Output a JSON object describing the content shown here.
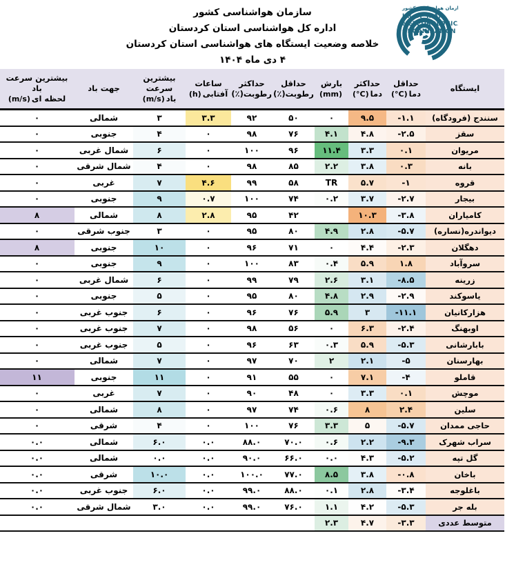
{
  "header": {
    "org_line1": "سازمان هواشناسی کشور",
    "org_line2": "اداره کل هواشناسی استان کردستان",
    "title": "خلاصه وضعیت ایستگاه های هواشناسی استان کردستان",
    "date": "۴ دی ماه ۱۴۰۴",
    "logo": {
      "color": "#1e667f",
      "text_fa": "سازمان هواشناسی کشور",
      "text_en": [
        "I.R.OF IRAN",
        "METEOROLOGICAL",
        "ORGANIZATION"
      ]
    }
  },
  "table": {
    "header_bg": "#e3e0ed",
    "station_bg": "#fbe5d6",
    "summary_station_bg": "#dad4e7",
    "columns": [
      {
        "id": "station",
        "line1": "ایستگاه"
      },
      {
        "id": "tmin",
        "line1": "حداقل",
        "line2": "دما",
        "unit": "(°C)"
      },
      {
        "id": "tmax",
        "line1": "حداکثر",
        "line2": "دما",
        "unit": "(°C)"
      },
      {
        "id": "precip",
        "line1": "بارش",
        "unit": "(mm)"
      },
      {
        "id": "rhmin",
        "line1": "حداقل",
        "line2": "رطوبت(٪)"
      },
      {
        "id": "rhmax",
        "line1": "حداکثر",
        "line2": "رطوبت(٪)"
      },
      {
        "id": "sun",
        "line1": "ساعات",
        "line2": "آفتابی",
        "unit": "(h)"
      },
      {
        "id": "wind",
        "line1": "بیشترین سرعت",
        "line2": "باد",
        "unit": "(m/s)"
      },
      {
        "id": "dir",
        "line1": "جهت باد"
      },
      {
        "id": "gust",
        "line1": "بیشترین سرعت باد",
        "line2": "لحظه ای",
        "unit": "(m/s)"
      }
    ],
    "rows": [
      {
        "station": "سنندج (فرودگاه)",
        "values": [
          "-۱.۱",
          "۹.۵",
          "۰",
          "۵۰",
          "۹۲",
          "۳.۳",
          "۳",
          "شمالی",
          "۰"
        ],
        "bgs": [
          "#fbe3d1",
          "#f5b885",
          null,
          null,
          null,
          "#fbe89c",
          null,
          null,
          null
        ]
      },
      {
        "station": "سقز",
        "values": [
          "-۲.۵",
          "۴.۸",
          "۴.۱",
          "۷۶",
          "۹۸",
          "۰",
          "۴",
          "جنوبی",
          "۰"
        ],
        "bgs": [
          "#fdf1e8",
          "#fdf4ee",
          "#c2e2cc",
          null,
          null,
          null,
          "#f8fbfc",
          null,
          null
        ]
      },
      {
        "station": "مریوان",
        "values": [
          "۰.۱",
          "۳.۳",
          "۱۱.۴",
          "۹۶",
          "۱۰۰",
          "۰",
          "۶",
          "شمال غربی",
          "۰"
        ],
        "bgs": [
          "#f9ddc4",
          "#ddecf4",
          "#66bd7d",
          null,
          null,
          null,
          "#e1f0f4",
          null,
          null
        ]
      },
      {
        "station": "بانه",
        "values": [
          "۰.۳",
          "۳.۸",
          "۲.۲",
          "۸۵",
          "۹۸",
          "۰",
          "۴",
          "شمال شرقی",
          "۰"
        ],
        "bgs": [
          "#f9dcc2",
          "#e4f0f6",
          "#ddefe3",
          null,
          null,
          null,
          "#f8fbfc",
          null,
          null
        ]
      },
      {
        "station": "قروه",
        "values": [
          "-۱",
          "۵.۷",
          "TR",
          "۵۸",
          "۹۹",
          "۴.۶",
          "۷",
          "غربی",
          "۰"
        ],
        "bgs": [
          "#fbe4d2",
          "#fae1cb",
          null,
          null,
          null,
          "#fadf7f",
          "#d8ecf1",
          null,
          null
        ]
      },
      {
        "station": "بیجار",
        "values": [
          "-۲.۷",
          "۳.۷",
          "۰.۲",
          "۷۴",
          "۱۰۰",
          "۰.۷",
          "۹",
          "جنوبی",
          "۰"
        ],
        "bgs": [
          "#fdf3ec",
          "#e2eff5",
          "#fbfdfb",
          null,
          null,
          "#fdf9e4",
          "#c5e4eb",
          null,
          null
        ]
      },
      {
        "station": "کامیاران",
        "values": [
          "-۳.۸",
          "۱۰.۳",
          "",
          "۴۲",
          "۹۵",
          "۲.۸",
          "۸",
          "شمالی",
          "۸"
        ],
        "bgs": [
          "#eef4f8",
          "#f4b27b",
          null,
          null,
          null,
          "#fcedae",
          "#cfe8ee",
          null,
          "#d5cde4"
        ]
      },
      {
        "station": "دیواندره(نساره)",
        "values": [
          "-۵.۷",
          "۲.۸",
          "۴.۹",
          "۸۰",
          "۹۵",
          "۰",
          "۳",
          "جنوب شرقی",
          "۰"
        ],
        "bgs": [
          "#d8e9f2",
          "#d3e6f0",
          "#b7ddc3",
          null,
          null,
          null,
          null,
          null,
          null
        ]
      },
      {
        "station": "دهگلان",
        "values": [
          "-۲.۳",
          "۴.۴",
          "۰",
          "۷۱",
          "۹۶",
          "۰",
          "۱۰",
          "جنوبی",
          "۸"
        ],
        "bgs": [
          "#fdf0e5",
          "#fefbf9",
          null,
          null,
          null,
          null,
          "#bce0e8",
          null,
          "#d5cde4"
        ]
      },
      {
        "station": "سروآباد",
        "values": [
          "۱.۸",
          "۵.۹",
          "۰.۴",
          "۸۳",
          "۱۰۰",
          "۰",
          "۹",
          "جنوبی",
          "۰"
        ],
        "bgs": [
          "#f8d5b5",
          "#f9ddc5",
          "#f7fbf8",
          null,
          null,
          null,
          "#c5e4eb",
          null,
          null
        ]
      },
      {
        "station": "زرینه",
        "values": [
          "-۸.۵",
          "۳.۱",
          "۲.۶",
          "۷۹",
          "۹۹",
          "۰",
          "۶",
          "شمال غربی",
          "۰"
        ],
        "bgs": [
          "#b3d4e4",
          "#dae9f2",
          "#d7ecde",
          null,
          null,
          null,
          "#e1f0f4",
          null,
          null
        ]
      },
      {
        "station": "یاسوکند",
        "values": [
          "-۲.۹",
          "۲.۹",
          "۴.۸",
          "۸۰",
          "۹۵",
          "۰",
          "۵",
          "جنوبی",
          "۰"
        ],
        "bgs": [
          "#fefaf7",
          "#d5e7f1",
          "#b8ddc4",
          null,
          null,
          null,
          "#eaf4f7",
          null,
          null
        ]
      },
      {
        "station": "هزارکانیان",
        "values": [
          "-۱۱.۱",
          "۳",
          "۵.۹",
          "۷۶",
          "۹۶",
          "۰",
          "۶",
          "جنوب غربی",
          "۰"
        ],
        "bgs": [
          "#9fc6db",
          "#d7e8f1",
          "#aad6b8",
          null,
          null,
          null,
          "#e1f0f4",
          null,
          null
        ]
      },
      {
        "station": "اوبهنگ",
        "values": [
          "-۲.۴",
          "۶.۳",
          "۰",
          "۵۶",
          "۹۸",
          "۰",
          "۷",
          "جنوب غربی",
          "۰"
        ],
        "bgs": [
          "#fdf2ea",
          "#f8d6b8",
          null,
          null,
          null,
          null,
          "#d8ecf1",
          null,
          null
        ]
      },
      {
        "station": "بابارشانی",
        "values": [
          "-۵.۳",
          "۵.۹",
          "۰.۳",
          "۶۳",
          "۹۶",
          "۰",
          "۵",
          "جنوب غربی",
          "۰"
        ],
        "bgs": [
          "#dcebf3",
          "#f9ddc5",
          "#f9fcfa",
          null,
          null,
          null,
          "#eaf4f7",
          null,
          null
        ]
      },
      {
        "station": "بهارسنان",
        "values": [
          "-۵",
          "۲.۱",
          "۲",
          "۷۰",
          "۹۷",
          "۰",
          "۷",
          "شمالی",
          "۰"
        ],
        "bgs": [
          "#e0edf4",
          "#cce2ee",
          "#e0f0e5",
          null,
          null,
          null,
          "#d8ecf1",
          null,
          null
        ]
      },
      {
        "station": "قاملو",
        "values": [
          "-۴",
          "۷.۱",
          "۰",
          "۵۵",
          "۹۱",
          "۰",
          "۱۱",
          "جنوبی",
          "۱۱"
        ],
        "bgs": [
          "#eff5f9",
          "#f7cda6",
          null,
          null,
          null,
          null,
          "#b2dce5",
          null,
          "#c3b7d8"
        ]
      },
      {
        "station": "موچش",
        "values": [
          "۰.۱",
          "۳.۳",
          "۰",
          "۴۸",
          "۹۰",
          "۰",
          "۷",
          "غربی",
          "۰"
        ],
        "bgs": [
          "#f9ddc4",
          "#ddecf4",
          null,
          null,
          null,
          null,
          "#d8ecf1",
          null,
          null
        ]
      },
      {
        "station": "سلین",
        "values": [
          "۲.۴",
          "۸",
          "۰.۶",
          "۷۴",
          "۹۷",
          "۰",
          "۸",
          "شمالی",
          "۰"
        ],
        "bgs": [
          "#f7d0ab",
          "#f6c494",
          "#f4faf6",
          null,
          null,
          null,
          "#cfe8ee",
          null,
          null
        ]
      },
      {
        "station": "حاجی ممدان",
        "values": [
          "-۵.۷",
          "۵",
          "۳.۳",
          "۷۶",
          "۱۰۰",
          "۰",
          "۴",
          "شرقی",
          "۰"
        ],
        "bgs": [
          "#d8e9f2",
          "#fdf7f2",
          "#cde7d6",
          null,
          null,
          null,
          "#f8fbfc",
          null,
          null
        ]
      },
      {
        "station": "سراب شهرک",
        "values": [
          "-۹.۳",
          "۲.۲",
          "۰.۶",
          "۷۰.۰",
          "۸۸.۰",
          "۰.۰",
          "۶.۰",
          "شمالی",
          "۰.۰"
        ],
        "bgs": [
          "#aacde0",
          "#cde3ef",
          "#f4faf6",
          null,
          null,
          null,
          "#e1f0f4",
          null,
          null
        ]
      },
      {
        "station": "گل تپه",
        "values": [
          "-۵.۲",
          "۴.۳",
          "۰.۰",
          "۶۶.۰",
          "۹۰.۰",
          "۰.۰",
          "۰.۰",
          "شمالی",
          "۰.۰"
        ],
        "bgs": [
          "#ddebf4",
          "#fefdfc",
          null,
          null,
          null,
          null,
          null,
          null,
          null
        ]
      },
      {
        "station": "باخان",
        "values": [
          "-۰.۸",
          "۳.۸",
          "۸.۵",
          "۷۷.۰",
          "۱۰۰.۰",
          "۰.۰",
          "۱۰.۰",
          "شرقی",
          "۰.۰"
        ],
        "bgs": [
          "#fbe1cd",
          "#e4f0f6",
          "#8cc89f",
          null,
          null,
          null,
          "#bce0e8",
          null,
          null
        ]
      },
      {
        "station": "باغلوجه",
        "values": [
          "-۳.۴",
          "۲.۸",
          "۰.۱",
          "۸۸.۰",
          "۹۹.۰",
          "۰.۰",
          "۶.۰",
          "جنوب غربی",
          "۰.۰"
        ],
        "bgs": [
          "#fefcfa",
          "#d3e6f0",
          "#fdfefd",
          null,
          null,
          null,
          "#e1f0f4",
          null,
          null
        ]
      },
      {
        "station": "بله جر",
        "values": [
          "-۵.۳",
          "۴.۲",
          "۱.۱",
          "۷۶.۰",
          "۹۹.۰",
          "۰.۰",
          "۳.۰",
          "شمال شرقی",
          "۰.۰"
        ],
        "bgs": [
          "#dcebf3",
          "#fefefe",
          "#ebf5ee",
          null,
          null,
          null,
          null,
          null,
          null
        ]
      },
      {
        "station": "متوسط عددی",
        "summary": true,
        "values": [
          "-۳.۳",
          "۴.۷",
          "۲.۳",
          "",
          "",
          "",
          "",
          "",
          ""
        ],
        "bgs": [
          "#fbeadb",
          "#fdf3eb",
          "#dceee2",
          null,
          null,
          null,
          null,
          null,
          null
        ]
      }
    ]
  }
}
